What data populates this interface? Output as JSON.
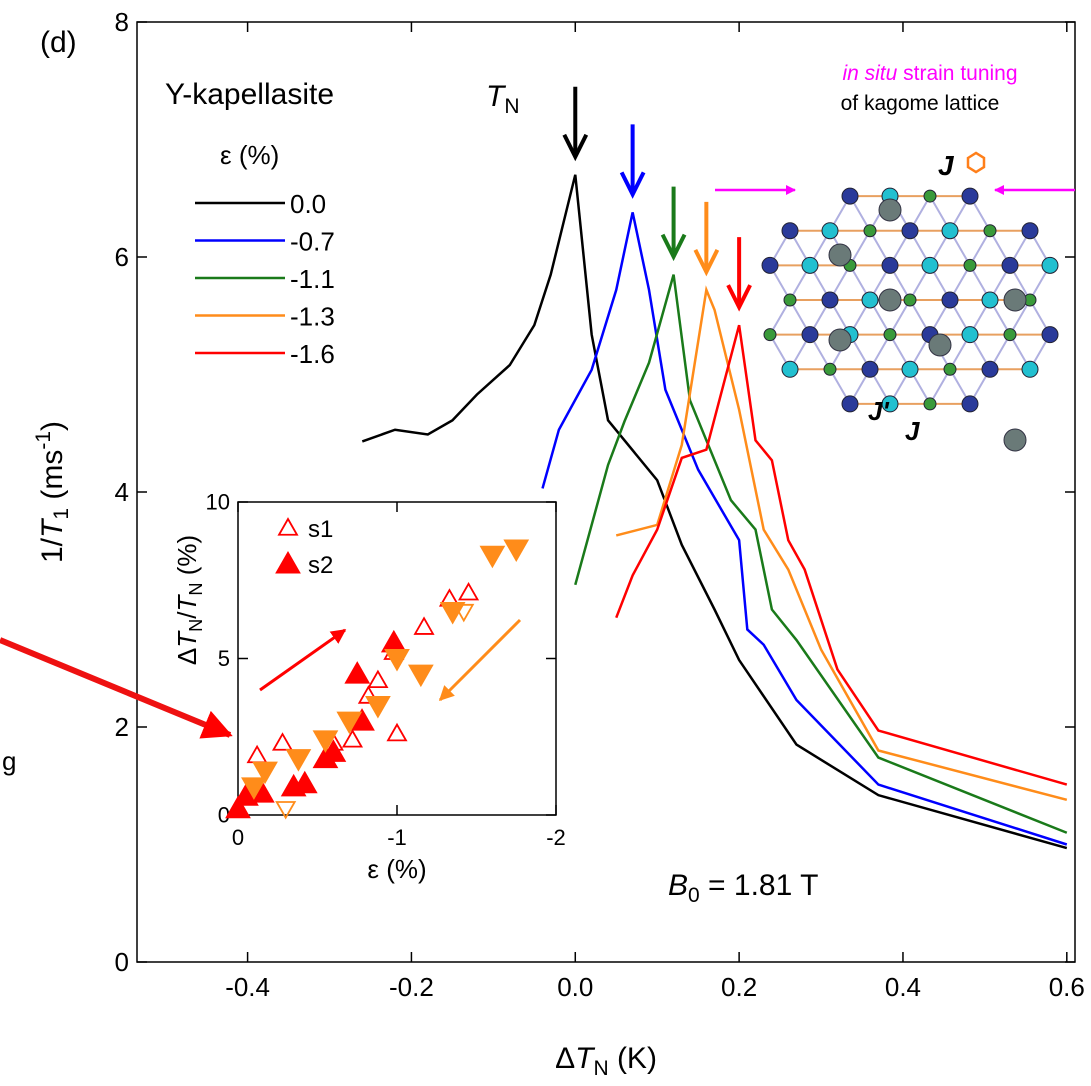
{
  "panel_label": "(d)",
  "fragment": "g",
  "chart_data": [
    {
      "type": "line",
      "x_label": [
        "Δ",
        "T",
        "N",
        " (K)"
      ],
      "y_label": [
        "1/",
        "T",
        "1",
        " (ms",
        "-1",
        ")"
      ],
      "xlim": [
        -0.535,
        0.61
      ],
      "ylim": [
        0,
        8
      ],
      "xticks": [
        -0.4,
        -0.2,
        {
          "value": 0,
          "label": "0.0"
        },
        0.2,
        0.4,
        0.6
      ],
      "yticks": [
        0,
        2,
        4,
        6,
        8
      ],
      "legend_title": "Y-kapellasite",
      "legend_subtitle": "ε (%)",
      "legend": "upper left",
      "peak_arrows": true,
      "annotations": {
        "tn": [
          "T",
          "N"
        ],
        "field": [
          "B",
          "0",
          " = 1.81 T"
        ]
      },
      "series": [
        {
          "name": "0.0",
          "color": "#000000",
          "x": [
            -0.26,
            -0.22,
            -0.18,
            -0.15,
            -0.12,
            -0.08,
            -0.05,
            -0.03,
            0.0,
            0.02,
            0.04,
            0.1,
            0.13,
            0.17,
            0.2,
            0.27,
            0.37,
            0.6
          ],
          "values": [
            4.43,
            4.53,
            4.49,
            4.61,
            4.83,
            5.08,
            5.42,
            5.85,
            6.7,
            5.34,
            4.61,
            4.1,
            3.55,
            3.0,
            2.57,
            1.85,
            1.42,
            0.97
          ]
        },
        {
          "name": "-0.7",
          "color": "#0000ff",
          "x": [
            -0.04,
            -0.02,
            0.02,
            0.05,
            0.07,
            0.09,
            0.11,
            0.15,
            0.2,
            0.21,
            0.23,
            0.27,
            0.37,
            0.6
          ],
          "values": [
            4.03,
            4.53,
            5.04,
            5.72,
            6.38,
            5.72,
            4.87,
            4.19,
            3.59,
            2.83,
            2.7,
            2.23,
            1.51,
            1.0
          ]
        },
        {
          "name": "-1.1",
          "color": "#1a7a1a",
          "x": [
            0.0,
            0.04,
            0.06,
            0.09,
            0.12,
            0.14,
            0.19,
            0.22,
            0.24,
            0.27,
            0.37,
            0.6
          ],
          "values": [
            3.21,
            4.23,
            4.6,
            5.1,
            5.85,
            4.78,
            3.93,
            3.68,
            3.0,
            2.74,
            1.74,
            1.1
          ]
        },
        {
          "name": "-1.3",
          "color": "#ff8c1a",
          "x": [
            0.05,
            0.1,
            0.13,
            0.16,
            0.17,
            0.2,
            0.23,
            0.26,
            0.3,
            0.37,
            0.6
          ],
          "values": [
            3.63,
            3.72,
            4.4,
            5.72,
            5.55,
            4.7,
            3.68,
            3.34,
            2.66,
            1.8,
            1.38
          ]
        },
        {
          "name": "-1.6",
          "color": "#ff0000",
          "x": [
            0.05,
            0.07,
            0.1,
            0.13,
            0.16,
            0.2,
            0.22,
            0.24,
            0.26,
            0.28,
            0.32,
            0.37,
            0.6
          ],
          "values": [
            2.93,
            3.29,
            3.68,
            4.29,
            4.36,
            5.42,
            4.44,
            4.27,
            3.59,
            3.34,
            2.49,
            1.97,
            1.51
          ]
        }
      ],
      "figure": {
        "caption_1": [
          "in situ",
          " strain tuning"
        ],
        "caption_2": "of kagome lattice",
        "j_hex": "J",
        "j_prime": "J'",
        "j": "J"
      }
    },
    {
      "type": "scatter",
      "x_label": "ε (%)",
      "y_label": [
        "Δ",
        "T",
        "N",
        "/",
        "T",
        "N",
        " (%)"
      ],
      "xlim": [
        0,
        -2
      ],
      "ylim": [
        0,
        10
      ],
      "xticks": [
        0,
        -1,
        -2
      ],
      "yticks": [
        0,
        5,
        10
      ],
      "legend": "upper left",
      "series": [
        {
          "name": "s1",
          "color": "#ff0000",
          "marker": "triangle-up",
          "filled": false,
          "x": [
            -0.12,
            -0.28,
            -0.6,
            -0.72,
            -0.82,
            -0.88,
            -0.98,
            -1.0,
            -1.17,
            -1.33,
            -1.45
          ],
          "values": [
            1.9,
            2.3,
            2.3,
            2.4,
            3.8,
            4.3,
            5.2,
            2.6,
            6.0,
            6.9,
            7.1
          ]
        },
        {
          "name": "s2",
          "color": "#ff0000",
          "marker": "triangle-up",
          "filled": true,
          "x": [
            0,
            -0.05,
            -0.15,
            -0.35,
            -0.42,
            -0.55,
            -0.6,
            -0.75,
            -0.78,
            -0.98
          ],
          "values": [
            0.2,
            0.6,
            0.7,
            0.9,
            1.0,
            1.8,
            2.0,
            4.5,
            3.0,
            5.5
          ]
        },
        {
          "color": "#ff8c1a",
          "marker": "triangle-down",
          "filled": true,
          "x": [
            -0.1,
            -0.17,
            -0.38,
            -0.55,
            -0.7,
            -0.88,
            -1.0,
            -1.15,
            -1.35,
            -1.6,
            -1.75
          ],
          "values": [
            0.9,
            1.4,
            1.8,
            2.4,
            3.0,
            3.5,
            5.0,
            4.5,
            6.5,
            8.3,
            8.5
          ]
        },
        {
          "color": "#ff8c1a",
          "marker": "triangle-down",
          "filled": false,
          "x": [
            -0.3,
            -1.42
          ],
          "values": [
            0.2,
            6.5
          ]
        }
      ]
    }
  ]
}
